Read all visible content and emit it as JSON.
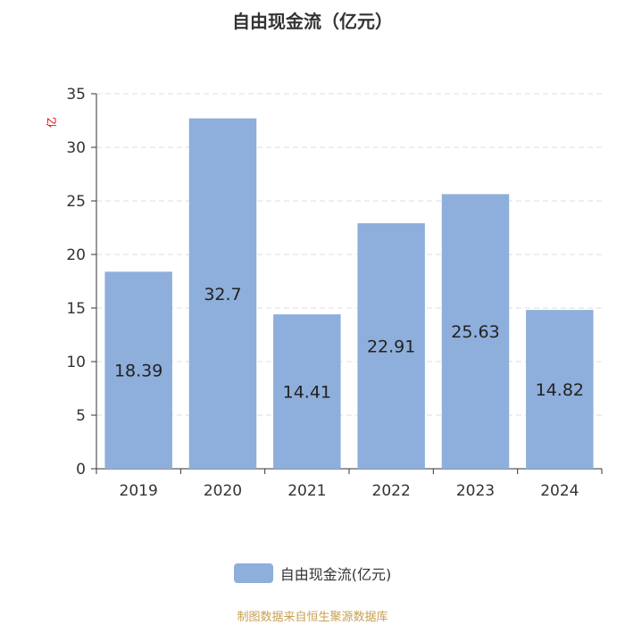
{
  "chart_data": {
    "type": "bar",
    "title": "自由现金流（亿元）",
    "ylabel": "亿",
    "categories": [
      "2019",
      "2020",
      "2021",
      "2022",
      "2023",
      "2024"
    ],
    "series": [
      {
        "name": "自由现金流(亿元)",
        "values": [
          18.39,
          32.7,
          14.41,
          22.91,
          25.63,
          14.82
        ]
      }
    ],
    "data_labels": [
      "18.39",
      "32.7",
      "14.41",
      "22.91",
      "25.63",
      "14.82"
    ],
    "ylim": [
      0,
      35
    ],
    "yticks": [
      0,
      5,
      10,
      15,
      20,
      25,
      30,
      35
    ],
    "grid": true,
    "legend_position": "bottom"
  },
  "colors": {
    "bar": "#8eaedb",
    "ylabel": "#e00000",
    "source": "#c8a050",
    "grid": "#dddddd",
    "axis": "#333333"
  },
  "source_text": "制图数据来自恒生聚源数据库"
}
